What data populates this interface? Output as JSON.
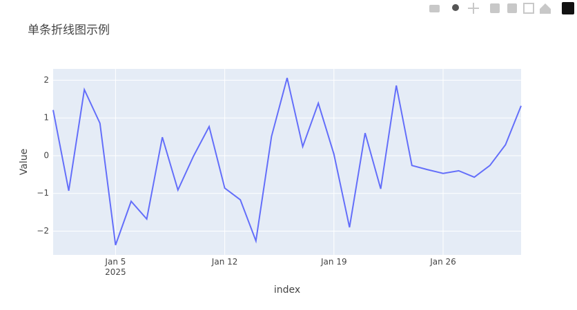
{
  "chart_data": {
    "type": "line",
    "title": "单条折线图示例",
    "x_label": "index",
    "y_label": "Value",
    "x": [
      "2025-01-01",
      "2025-01-02",
      "2025-01-03",
      "2025-01-04",
      "2025-01-05",
      "2025-01-06",
      "2025-01-07",
      "2025-01-08",
      "2025-01-09",
      "2025-01-10",
      "2025-01-11",
      "2025-01-12",
      "2025-01-13",
      "2025-01-14",
      "2025-01-15",
      "2025-01-16",
      "2025-01-17",
      "2025-01-18",
      "2025-01-19",
      "2025-01-20",
      "2025-01-21",
      "2025-01-22",
      "2025-01-23",
      "2025-01-24",
      "2025-01-25",
      "2025-01-26",
      "2025-01-27",
      "2025-01-28",
      "2025-01-29",
      "2025-01-30",
      "2025-01-31"
    ],
    "series": [
      {
        "color": "#636efa",
        "values": [
          1.21,
          -0.93,
          1.75,
          0.86,
          -2.37,
          -1.21,
          -1.68,
          0.49,
          -0.91,
          -0.01,
          0.77,
          -0.86,
          -1.17,
          -2.26,
          0.51,
          2.06,
          0.24,
          1.39,
          0.04,
          -1.9,
          0.6,
          -0.88,
          1.86,
          -0.26,
          -0.37,
          -0.47,
          -0.4,
          -0.57,
          -0.26,
          0.29,
          1.32
        ]
      }
    ],
    "xlim": [
      "2025-01-01",
      "2025-01-31"
    ],
    "xticks": [
      {
        "value": "2025-01-05",
        "label": "Jan 5\n2025"
      },
      {
        "value": "2025-01-12",
        "label": "Jan 12"
      },
      {
        "value": "2025-01-19",
        "label": "Jan 19"
      },
      {
        "value": "2025-01-26",
        "label": "Jan 26"
      }
    ],
    "ylim": [
      -2.63,
      2.3
    ],
    "yticks": [
      {
        "value": -2,
        "label": "−2"
      },
      {
        "value": -1,
        "label": "−1"
      },
      0,
      1,
      2
    ],
    "grid": true,
    "background": "#e5ecf6"
  }
}
